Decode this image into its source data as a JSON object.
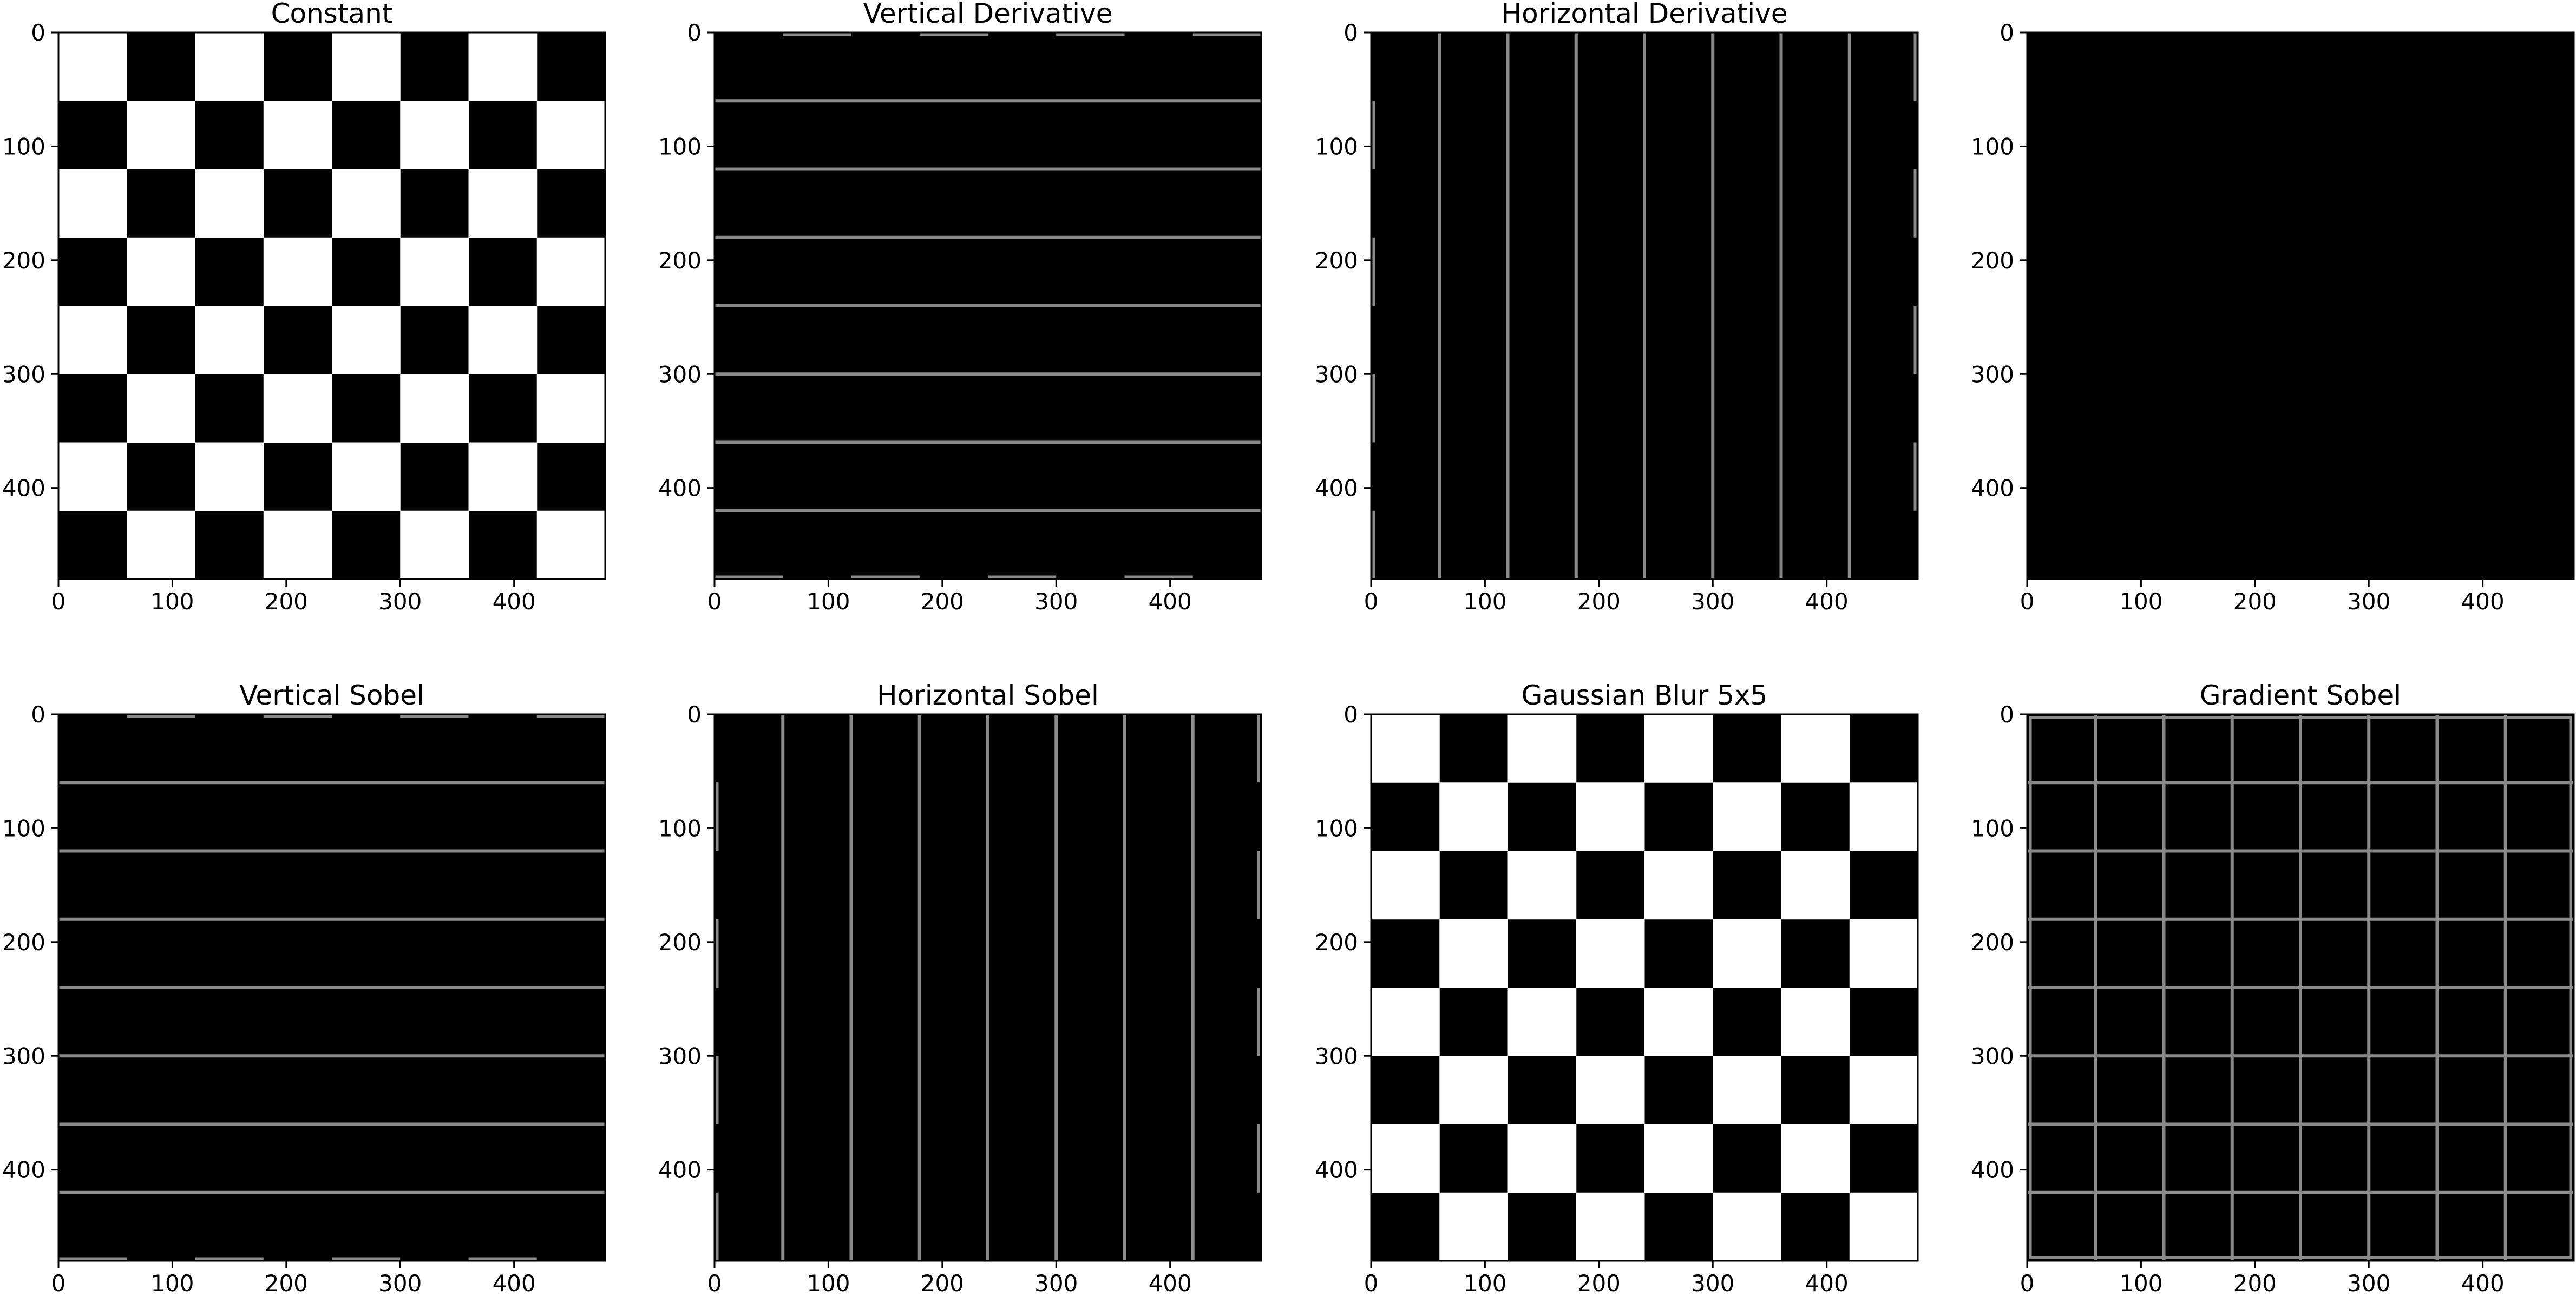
{
  "figure": {
    "image_extent": [
      0,
      480
    ],
    "x_ticks": [
      0,
      100,
      200,
      300,
      400
    ],
    "y_ticks": [
      0,
      100,
      200,
      300,
      400
    ],
    "tick_labels": [
      "0",
      "100",
      "200",
      "300",
      "400"
    ],
    "checker_cells": 8,
    "colors": {
      "background": "#ffffff",
      "black": "#000000",
      "white": "#ffffff",
      "edge": "#8a8a8a",
      "axis": "#000000"
    }
  },
  "panels": [
    {
      "title": "Constant",
      "render": "checker",
      "first_cell": "white"
    },
    {
      "title": "Vertical Derivative",
      "render": "hlines"
    },
    {
      "title": "Horizontal Derivative",
      "render": "vlines"
    },
    {
      "title": "",
      "render": "black"
    },
    {
      "title": "Vertical Sobel",
      "render": "hlines"
    },
    {
      "title": "Horizontal Sobel",
      "render": "vlines"
    },
    {
      "title": "Gaussian Blur 5x5",
      "render": "checker",
      "first_cell": "white"
    },
    {
      "title": "Gradient Sobel",
      "render": "grid"
    }
  ]
}
